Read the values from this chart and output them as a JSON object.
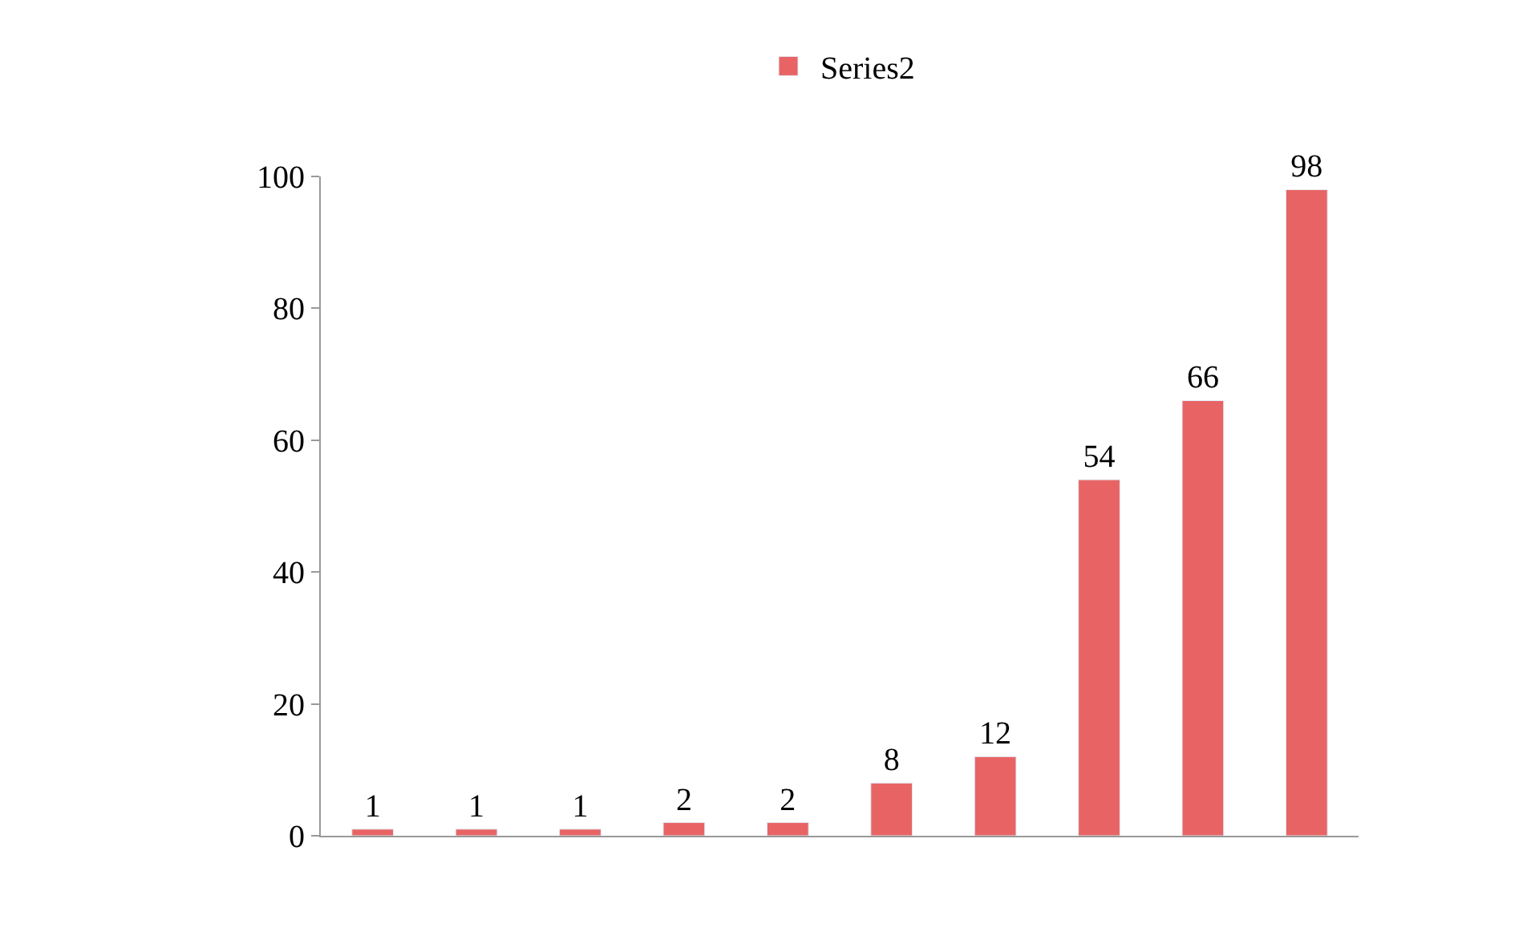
{
  "chart_data": {
    "type": "bar",
    "categories": [
      null,
      null,
      null,
      null,
      null,
      null,
      null,
      null,
      null,
      null
    ],
    "series": [
      {
        "name": "Series2",
        "color": "#e86464",
        "values": [
          1,
          1,
          1,
          2,
          2,
          8,
          12,
          54,
          66,
          98
        ]
      }
    ],
    "ylim": [
      0,
      100
    ],
    "yticks": [
      0,
      20,
      40,
      60,
      80,
      100
    ],
    "legend": "top",
    "data_labels": true,
    "tick_labels": "y"
  }
}
